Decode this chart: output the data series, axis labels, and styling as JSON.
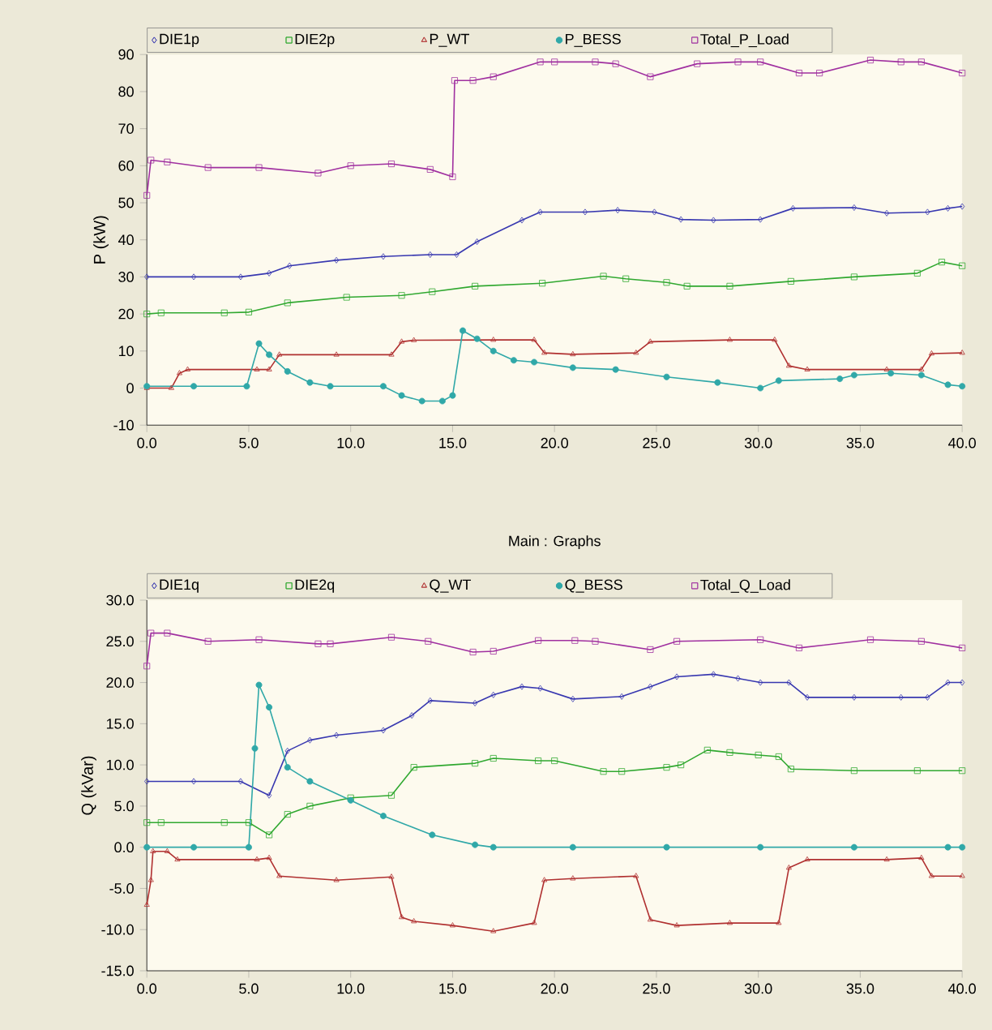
{
  "chart_data": [
    {
      "type": "line",
      "ylabel": "P (kW)",
      "legend": "top",
      "xlim": [
        0,
        40
      ],
      "ylim": [
        -10,
        90
      ],
      "xticks": [
        {
          "value": 0,
          "label": "0.0"
        },
        {
          "value": 5,
          "label": "5.0"
        },
        {
          "value": 10,
          "label": "10.0"
        },
        {
          "value": 15,
          "label": "15.0"
        },
        {
          "value": 20,
          "label": "20.0"
        },
        {
          "value": 25,
          "label": "25.0"
        },
        {
          "value": 30,
          "label": "30.0"
        },
        {
          "value": 35,
          "label": "35.0"
        },
        {
          "value": 40,
          "label": "40.0"
        }
      ],
      "yticks": [
        -10,
        0,
        10,
        20,
        30,
        40,
        50,
        60,
        70,
        80,
        90
      ],
      "series": [
        {
          "name": "DIE1p",
          "color": "#3838b0",
          "marker": "diamond",
          "x": [
            0,
            2.3,
            4.6,
            6,
            7,
            9.3,
            11.6,
            13.9,
            15.2,
            16.2,
            18.4,
            19.3,
            21.5,
            23.1,
            24.9,
            26.2,
            27.8,
            30.1,
            31.7,
            34.7,
            36.3,
            38.3,
            39.3,
            40
          ],
          "values": [
            30,
            30,
            30,
            31,
            33,
            34.5,
            35.5,
            36,
            36,
            39.5,
            45.3,
            47.5,
            47.5,
            48,
            47.5,
            45.5,
            45.3,
            45.5,
            48.5,
            48.7,
            47.2,
            47.5,
            48.5,
            49
          ]
        },
        {
          "name": "DIE2p",
          "color": "#30a830",
          "marker": "square",
          "x": [
            0,
            0.7,
            3.8,
            5,
            6.9,
            9.8,
            12.5,
            14,
            16.1,
            19.4,
            22.4,
            23.5,
            25.5,
            26.5,
            28.6,
            31.6,
            34.7,
            37.8,
            39,
            40
          ],
          "values": [
            20,
            20.3,
            20.3,
            20.5,
            23,
            24.5,
            25,
            26,
            27.5,
            28.3,
            30.2,
            29.5,
            28.5,
            27.5,
            27.5,
            28.8,
            30,
            31,
            34,
            33
          ]
        },
        {
          "name": "P_WT",
          "color": "#b03030",
          "marker": "triangle",
          "x": [
            0,
            1.2,
            1.6,
            2,
            5.4,
            6,
            6.5,
            9.3,
            12,
            12.5,
            13.1,
            17,
            19,
            19.5,
            20.9,
            24,
            24.7,
            28.6,
            30.8,
            31.5,
            32.4,
            36.3,
            38,
            38.5,
            40
          ],
          "values": [
            0,
            0,
            4,
            5,
            5,
            5,
            9,
            9,
            9,
            12.5,
            12.9,
            13,
            13,
            9.5,
            9.1,
            9.5,
            12.5,
            13,
            13,
            6,
            5,
            5,
            5,
            9.3,
            9.5
          ]
        },
        {
          "name": "P_BESS",
          "color": "#30a8a8",
          "marker": "circle",
          "x": [
            0,
            2.3,
            4.9,
            5.5,
            6,
            6.9,
            8,
            9,
            11.6,
            12.5,
            13.5,
            14.5,
            15,
            15.5,
            16.2,
            17,
            18,
            19,
            20.9,
            23,
            25.5,
            28,
            30.1,
            31,
            34,
            34.7,
            36.5,
            38,
            39.3,
            40
          ],
          "values": [
            0.5,
            0.5,
            0.5,
            12,
            9,
            4.5,
            1.5,
            0.5,
            0.5,
            -2,
            -3.5,
            -3.5,
            -2,
            15.5,
            13.3,
            10,
            7.5,
            7,
            5.5,
            5,
            3,
            1.5,
            0,
            2,
            2.5,
            3.5,
            4,
            3.5,
            0.9,
            0.5
          ]
        },
        {
          "name": "Total_P_Load",
          "color": "#a030a0",
          "marker": "square",
          "x": [
            0,
            0.2,
            1,
            3,
            5.5,
            8.4,
            10,
            12,
            13.9,
            15,
            15.1,
            16,
            17,
            19.3,
            20,
            22,
            23,
            24.7,
            27,
            29,
            30.1,
            32,
            33,
            35.5,
            37,
            38,
            40
          ],
          "values": [
            52,
            61.5,
            61,
            59.5,
            59.5,
            58,
            60,
            60.5,
            59,
            57,
            83,
            83,
            84,
            88,
            88,
            88,
            87.5,
            84,
            87.5,
            88,
            88,
            85,
            85,
            88.5,
            88,
            88,
            85
          ]
        }
      ]
    },
    {
      "type": "line",
      "title": "Main : Graphs",
      "ylabel": "Q (kVar)",
      "legend": "top",
      "xlim": [
        0,
        40
      ],
      "ylim": [
        -15,
        30
      ],
      "xticks": [
        {
          "value": 0,
          "label": "0.0"
        },
        {
          "value": 5,
          "label": "5.0"
        },
        {
          "value": 10,
          "label": "10.0"
        },
        {
          "value": 15,
          "label": "15.0"
        },
        {
          "value": 20,
          "label": "20.0"
        },
        {
          "value": 25,
          "label": "25.0"
        },
        {
          "value": 30,
          "label": "30.0"
        },
        {
          "value": 35,
          "label": "35.0"
        },
        {
          "value": 40,
          "label": "40.0"
        }
      ],
      "yticks": [
        {
          "value": -15,
          "label": "-15.0"
        },
        {
          "value": -10,
          "label": "-10.0"
        },
        {
          "value": -5,
          "label": "-5.0"
        },
        {
          "value": 0,
          "label": "0.0"
        },
        {
          "value": 5,
          "label": "5.0"
        },
        {
          "value": 10,
          "label": "10.0"
        },
        {
          "value": 15,
          "label": "15.0"
        },
        {
          "value": 20,
          "label": "20.0"
        },
        {
          "value": 25,
          "label": "25.0"
        },
        {
          "value": 30,
          "label": "30.0"
        }
      ],
      "series": [
        {
          "name": "DIE1q",
          "color": "#3838b0",
          "marker": "diamond",
          "x": [
            0,
            2.3,
            4.6,
            6,
            6.9,
            8,
            9.3,
            11.6,
            13,
            13.9,
            16.1,
            17,
            18.4,
            19.3,
            20.9,
            23.3,
            24.7,
            26,
            27.8,
            29,
            30.1,
            31.5,
            32.4,
            34.7,
            37,
            38.3,
            39.3,
            40
          ],
          "values": [
            8,
            8,
            8,
            6.3,
            11.7,
            13,
            13.6,
            14.2,
            16,
            17.8,
            17.5,
            18.5,
            19.5,
            19.3,
            18,
            18.3,
            19.5,
            20.7,
            21,
            20.5,
            20,
            20,
            18.2,
            18.2,
            18.2,
            18.2,
            20,
            20
          ]
        },
        {
          "name": "DIE2q",
          "color": "#30a830",
          "marker": "square",
          "x": [
            0,
            0.7,
            3.8,
            5,
            6,
            6.9,
            8,
            10,
            12,
            13.1,
            16.1,
            17,
            19.2,
            20,
            22.4,
            23.3,
            25.5,
            26.2,
            27.5,
            28.6,
            30,
            31,
            31.6,
            34.7,
            37.8,
            40
          ],
          "values": [
            3,
            3,
            3,
            3,
            1.5,
            4,
            5,
            6,
            6.3,
            9.7,
            10.2,
            10.8,
            10.5,
            10.5,
            9.2,
            9.2,
            9.7,
            10,
            11.8,
            11.5,
            11.2,
            11,
            9.5,
            9.3,
            9.3,
            9.3
          ]
        },
        {
          "name": "Q_WT",
          "color": "#b03030",
          "marker": "triangle",
          "x": [
            0,
            0.2,
            0.3,
            1,
            1.5,
            5.4,
            6,
            6.5,
            9.3,
            12,
            12.5,
            13.1,
            15,
            17,
            19,
            19.5,
            20.9,
            24,
            24.7,
            26,
            28.6,
            31,
            31.5,
            32.4,
            36.3,
            38,
            38.5,
            40
          ],
          "values": [
            -7,
            -4,
            -0.5,
            -0.5,
            -1.5,
            -1.5,
            -1.3,
            -3.5,
            -4,
            -3.6,
            -8.5,
            -9,
            -9.5,
            -10.2,
            -9.2,
            -4,
            -3.8,
            -3.5,
            -8.8,
            -9.5,
            -9.2,
            -9.2,
            -2.5,
            -1.5,
            -1.5,
            -1.3,
            -3.5,
            -3.5
          ]
        },
        {
          "name": "Q_BESS",
          "color": "#30a8a8",
          "marker": "circle",
          "x": [
            0,
            2.3,
            5,
            5.3,
            5.5,
            6,
            6.9,
            8,
            10,
            11.6,
            14,
            16.1,
            17,
            20.9,
            25.5,
            30.1,
            34.7,
            39.3,
            40
          ],
          "values": [
            0,
            0,
            0,
            12,
            19.7,
            17,
            9.7,
            8,
            5.7,
            3.8,
            1.5,
            0.3,
            0,
            0,
            0,
            0,
            0,
            0,
            0
          ]
        },
        {
          "name": "Total_Q_Load",
          "color": "#a030a0",
          "marker": "square",
          "x": [
            0,
            0.2,
            1,
            3,
            5.5,
            8.4,
            9,
            12,
            13.8,
            16,
            17,
            19.2,
            21,
            22,
            24.7,
            26,
            30.1,
            32,
            35.5,
            38,
            40
          ],
          "values": [
            22,
            26,
            26,
            25,
            25.2,
            24.7,
            24.7,
            25.5,
            25,
            23.7,
            23.8,
            25.1,
            25.1,
            25,
            24,
            25,
            25.2,
            24.2,
            25.2,
            25,
            24.2
          ]
        }
      ]
    }
  ]
}
